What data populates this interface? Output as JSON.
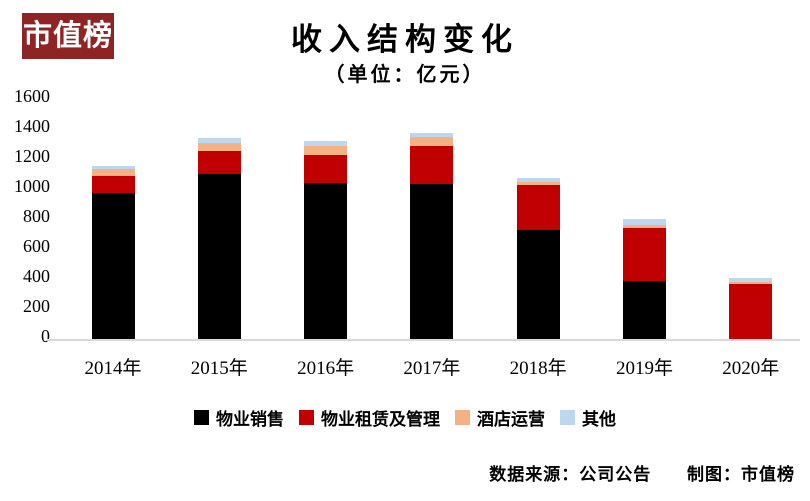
{
  "brand": {
    "logo_text": "市值榜"
  },
  "colors": {
    "logo_bg": "#8e2423",
    "axis_line": "#d9d9d9",
    "text": "#000000"
  },
  "chart_data": {
    "type": "bar",
    "stacked": true,
    "title": "收入结构变化",
    "subtitle": "（单位：亿元）",
    "unit": "亿元",
    "categories": [
      "2014年",
      "2015年",
      "2016年",
      "2017年",
      "2018年",
      "2019年",
      "2020年"
    ],
    "series": [
      {
        "name": "物业销售",
        "color": "#000000",
        "values": [
          975,
          1100,
          1040,
          1035,
          730,
          385,
          0
        ]
      },
      {
        "name": "物业租赁及管理",
        "color": "#c00000",
        "values": [
          110,
          155,
          185,
          255,
          300,
          355,
          365
        ]
      },
      {
        "name": "酒店运营",
        "color": "#f4b183",
        "values": [
          50,
          55,
          60,
          55,
          15,
          20,
          15
        ]
      },
      {
        "name": "其他",
        "color": "#bdd7ee",
        "values": [
          20,
          30,
          35,
          30,
          30,
          40,
          25
        ]
      }
    ],
    "totals": [
      1155,
      1340,
      1320,
      1375,
      1075,
      800,
      405
    ],
    "ylim": [
      0,
      1600
    ],
    "ytick_step": 200,
    "grid": false,
    "legend_position": "bottom"
  },
  "footer": {
    "source": "数据来源：公司公告",
    "credit": "制图：市值榜"
  }
}
